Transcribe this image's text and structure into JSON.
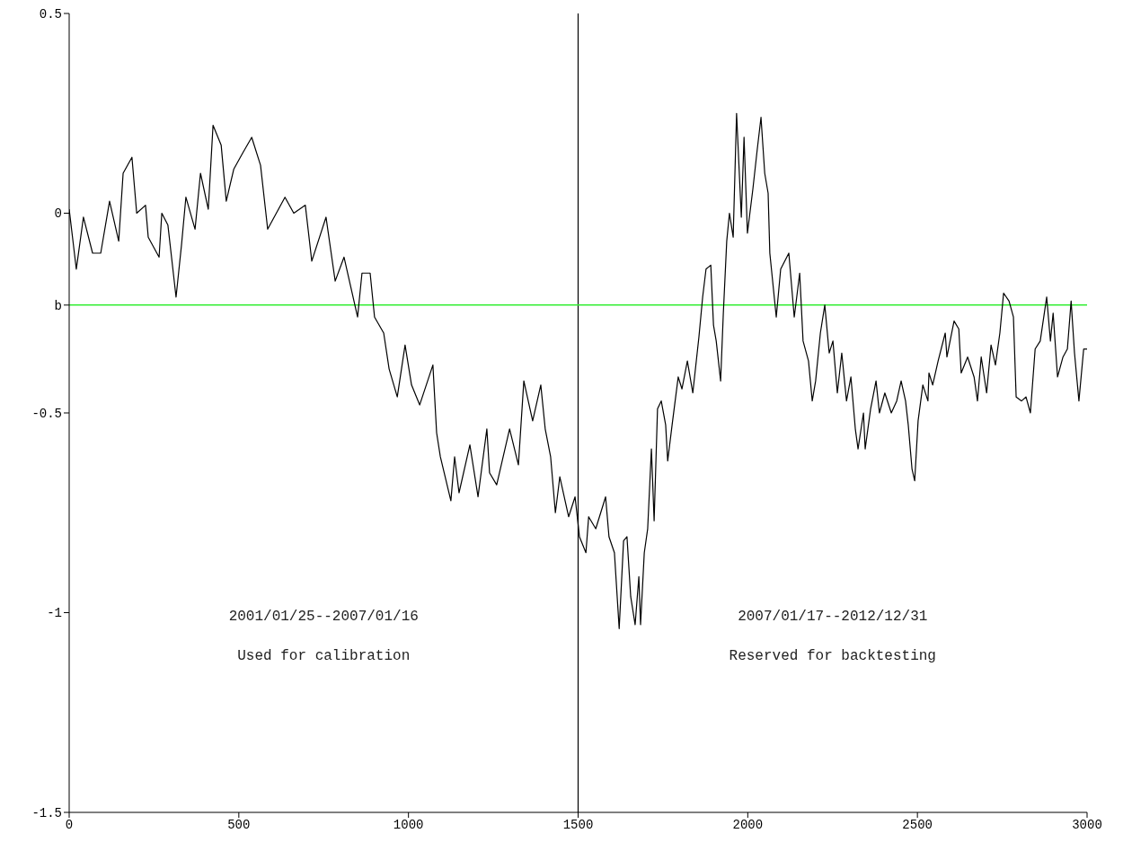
{
  "chart_data": {
    "type": "line",
    "x": [
      0,
      21,
      42,
      69,
      93,
      119,
      146,
      159,
      185,
      199,
      225,
      233,
      265,
      273,
      291,
      315,
      331,
      344,
      371,
      387,
      410,
      424,
      448,
      463,
      485,
      511,
      538,
      564,
      585,
      636,
      662,
      696,
      715,
      757,
      784,
      810,
      850,
      863,
      887,
      900,
      927,
      943,
      967,
      990,
      1009,
      1033,
      1072,
      1083,
      1094,
      1125,
      1136,
      1149,
      1181,
      1205,
      1231,
      1239,
      1260,
      1298,
      1324,
      1340,
      1366,
      1390,
      1403,
      1419,
      1433,
      1446,
      1472,
      1491,
      1504,
      1523,
      1531,
      1552,
      1581,
      1591,
      1607,
      1621,
      1634,
      1644,
      1655,
      1668,
      1679,
      1684,
      1695,
      1705,
      1716,
      1724,
      1734,
      1745,
      1758,
      1764,
      1777,
      1795,
      1806,
      1822,
      1838,
      1856,
      1867,
      1877,
      1891,
      1899,
      1907,
      1920,
      1928,
      1938,
      1946,
      1957,
      1967,
      1981,
      1989,
      1999,
      2015,
      2028,
      2039,
      2050,
      2060,
      2065,
      2084,
      2097,
      2121,
      2137,
      2153,
      2163,
      2179,
      2190,
      2200,
      2214,
      2227,
      2240,
      2251,
      2264,
      2277,
      2291,
      2304,
      2317,
      2325,
      2341,
      2346,
      2362,
      2378,
      2388,
      2404,
      2423,
      2439,
      2452,
      2465,
      2473,
      2484,
      2492,
      2502,
      2516,
      2531,
      2534,
      2545,
      2561,
      2582,
      2587,
      2608,
      2622,
      2629,
      2648,
      2667,
      2677,
      2688,
      2704,
      2717,
      2730,
      2743,
      2754,
      2770,
      2783,
      2791,
      2807,
      2820,
      2833,
      2847,
      2862,
      2881,
      2892,
      2900,
      2913,
      2929,
      2942,
      2953,
      2963,
      2976,
      2990,
      3000
    ],
    "series": [
      {
        "color": "#000000",
        "values": [
          0.01,
          -0.14,
          -0.01,
          -0.1,
          -0.1,
          0.03,
          -0.07,
          0.1,
          0.14,
          0.0,
          0.02,
          -0.06,
          -0.11,
          0.0,
          -0.03,
          -0.21,
          -0.08,
          0.04,
          -0.04,
          0.1,
          0.01,
          0.22,
          0.17,
          0.03,
          0.11,
          0.15,
          0.19,
          0.12,
          -0.04,
          0.04,
          0.0,
          0.02,
          -0.12,
          -0.01,
          -0.17,
          -0.11,
          -0.26,
          -0.15,
          -0.15,
          -0.26,
          -0.3,
          -0.39,
          -0.46,
          -0.33,
          -0.43,
          -0.48,
          -0.38,
          -0.55,
          -0.61,
          -0.72,
          -0.61,
          -0.7,
          -0.58,
          -0.71,
          -0.54,
          -0.65,
          -0.68,
          -0.54,
          -0.63,
          -0.42,
          -0.52,
          -0.43,
          -0.54,
          -0.61,
          -0.75,
          -0.66,
          -0.76,
          -0.71,
          -0.81,
          -0.85,
          -0.76,
          -0.79,
          -0.71,
          -0.81,
          -0.85,
          -1.04,
          -0.82,
          -0.81,
          -0.96,
          -1.03,
          -0.91,
          -1.03,
          -0.85,
          -0.79,
          -0.59,
          -0.77,
          -0.49,
          -0.47,
          -0.53,
          -0.62,
          -0.53,
          -0.41,
          -0.44,
          -0.37,
          -0.45,
          -0.31,
          -0.21,
          -0.14,
          -0.13,
          -0.28,
          -0.32,
          -0.42,
          -0.25,
          -0.07,
          0.0,
          -0.06,
          0.25,
          -0.01,
          0.19,
          -0.05,
          0.06,
          0.16,
          0.24,
          0.1,
          0.05,
          -0.1,
          -0.26,
          -0.14,
          -0.1,
          -0.26,
          -0.15,
          -0.32,
          -0.37,
          -0.47,
          -0.42,
          -0.3,
          -0.23,
          -0.35,
          -0.32,
          -0.45,
          -0.35,
          -0.47,
          -0.41,
          -0.54,
          -0.59,
          -0.5,
          -0.59,
          -0.49,
          -0.42,
          -0.5,
          -0.45,
          -0.5,
          -0.47,
          -0.42,
          -0.47,
          -0.53,
          -0.64,
          -0.67,
          -0.52,
          -0.43,
          -0.47,
          -0.4,
          -0.43,
          -0.37,
          -0.3,
          -0.36,
          -0.27,
          -0.29,
          -0.4,
          -0.36,
          -0.41,
          -0.47,
          -0.36,
          -0.45,
          -0.33,
          -0.38,
          -0.3,
          -0.2,
          -0.22,
          -0.26,
          -0.46,
          -0.47,
          -0.46,
          -0.5,
          -0.34,
          -0.32,
          -0.21,
          -0.32,
          -0.25,
          -0.41,
          -0.36,
          -0.34,
          -0.22,
          -0.35,
          -0.47,
          -0.34,
          -0.34
        ]
      }
    ],
    "xlim": [
      0,
      3000
    ],
    "xticks": [
      0,
      500,
      1000,
      1500,
      2000,
      2500,
      3000
    ],
    "ylim": [
      -1.5,
      0.5
    ],
    "yticks": [
      -1.5,
      -1,
      -0.5,
      {
        "value": -0.23,
        "label": "b"
      },
      0,
      0.5
    ],
    "ref_lines": [
      {
        "axis": "x",
        "value": 1500,
        "color": "#000000"
      },
      {
        "axis": "y",
        "value": -0.23,
        "color": "#33ee33"
      }
    ],
    "annotations": [
      "2001/01/25--2007/01/16",
      "Used for calibration",
      "2007/01/17--2012/12/31",
      "Reserved for backtesting"
    ],
    "grid": false,
    "legend": false,
    "marker": "none",
    "line_style": "solid"
  }
}
